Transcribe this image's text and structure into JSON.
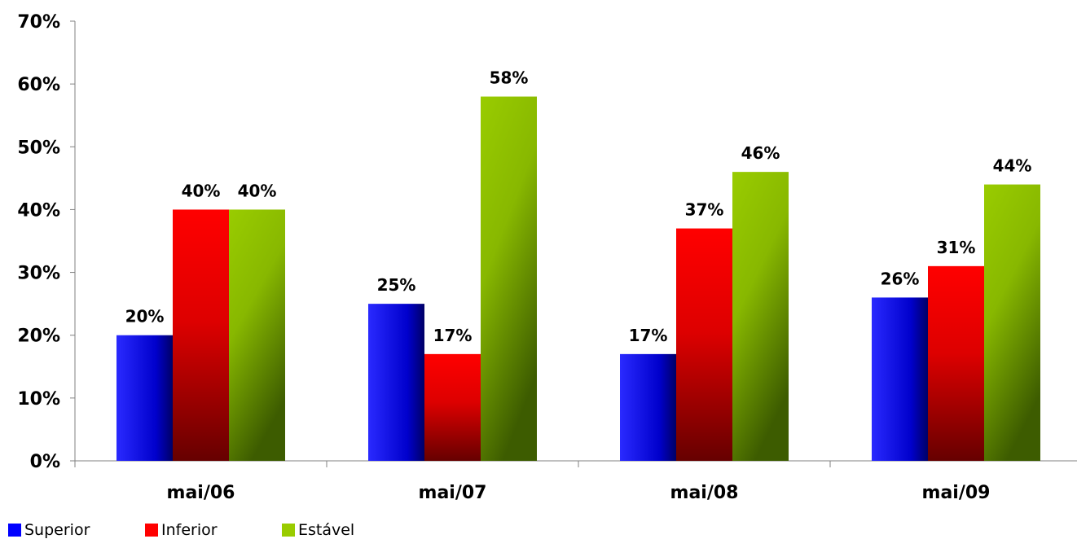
{
  "chart_data": {
    "type": "bar",
    "categories": [
      "mai/06",
      "mai/07",
      "mai/08",
      "mai/09"
    ],
    "series": [
      {
        "name": "Superior",
        "values": [
          20,
          25,
          17,
          26
        ],
        "labels": [
          "20%",
          "25%",
          "17%",
          "26%"
        ],
        "color": "#0000ff"
      },
      {
        "name": "Inferior",
        "values": [
          40,
          17,
          37,
          31
        ],
        "labels": [
          "40%",
          "17%",
          "37%",
          "31%"
        ],
        "color": "#ff0000"
      },
      {
        "name": "Estável",
        "values": [
          40,
          58,
          46,
          44
        ],
        "labels": [
          "40%",
          "58%",
          "46%",
          "44%"
        ],
        "color": "#99cc00"
      }
    ],
    "ylim": [
      0,
      70
    ],
    "yticks": [
      0,
      10,
      20,
      30,
      40,
      50,
      60,
      70
    ],
    "ytick_labels": [
      "0%",
      "10%",
      "20%",
      "30%",
      "40%",
      "50%",
      "60%",
      "70%"
    ],
    "grid": false,
    "legend_position": "bottom-left"
  }
}
